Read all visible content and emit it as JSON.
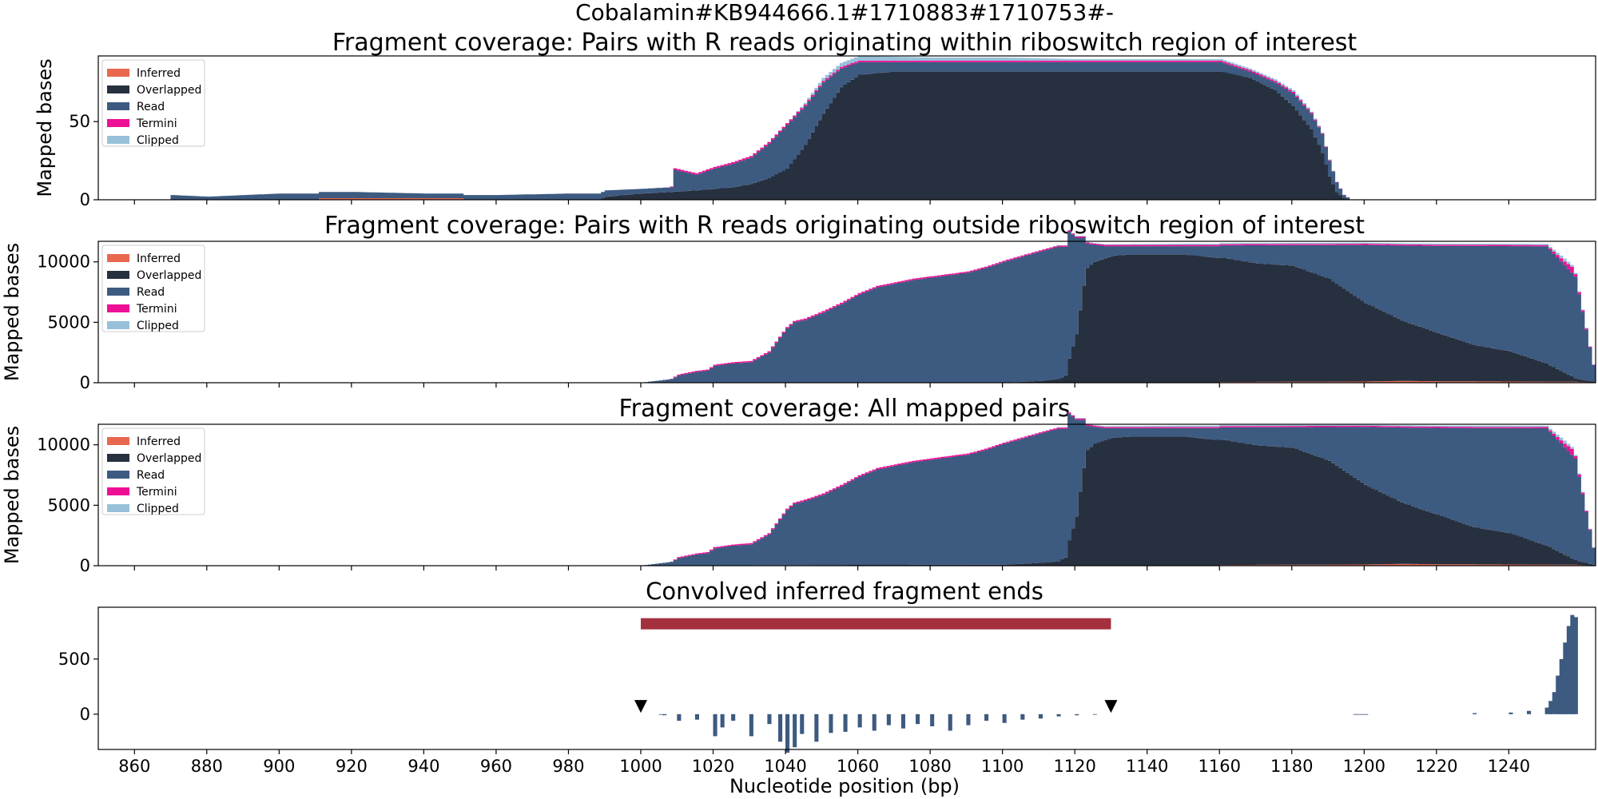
{
  "figure": {
    "suptitle": "Cobalamin#KB944666.1#1710883#1710753#-",
    "xlabel": "Nucleotide position (bp)"
  },
  "colors": {
    "Inferred": "#e8684f",
    "Overlapped": "#27303f",
    "Read": "#3d5a80",
    "Termini": "#ee0f97",
    "Clipped": "#98c1d9",
    "region_bar": "#a4303d"
  },
  "chart_data": [
    {
      "type": "area",
      "title": "Fragment coverage: Pairs with R reads originating within riboswitch region of interest",
      "ylabel": "Mapped bases",
      "xlim": [
        850,
        1264
      ],
      "ylim": [
        0,
        92
      ],
      "yticks": [
        0,
        50
      ],
      "legend": {
        "placement": "top-left",
        "entries": [
          "Inferred",
          "Overlapped",
          "Read",
          "Termini",
          "Clipped"
        ]
      },
      "series": [
        {
          "name": "Inferred",
          "x": [
            870,
            910,
            911,
            950,
            951,
            1264
          ],
          "values": [
            0,
            0,
            1,
            1,
            0,
            0
          ]
        },
        {
          "name": "Overlapped",
          "x": [
            870,
            988,
            990,
            1000,
            1008,
            1015,
            1025,
            1030,
            1035,
            1040,
            1045,
            1050,
            1055,
            1060,
            1070,
            1080,
            1090,
            1100,
            1110,
            1120,
            1130,
            1140,
            1160,
            1168,
            1175,
            1180,
            1185,
            1188,
            1190,
            1192,
            1194,
            1196,
            1264
          ],
          "values": [
            0,
            0,
            2,
            4,
            5,
            6,
            8,
            10,
            14,
            20,
            35,
            55,
            72,
            80,
            82,
            82,
            82,
            82,
            82,
            82,
            82,
            82,
            82,
            78,
            70,
            60,
            45,
            30,
            15,
            5,
            1,
            0,
            0
          ]
        },
        {
          "name": "Read",
          "x": [
            870,
            880,
            890,
            900,
            920,
            940,
            960,
            980,
            990,
            1000,
            1008,
            1009,
            1015,
            1020,
            1025,
            1030,
            1035,
            1040,
            1045,
            1050,
            1055,
            1060,
            1070,
            1080,
            1090,
            1100,
            1110,
            1120,
            1130,
            1140,
            1150,
            1160,
            1168,
            1175,
            1180,
            1185,
            1188,
            1190,
            1192,
            1194,
            1196,
            1264
          ],
          "values": [
            3,
            2,
            3,
            4,
            4,
            3,
            3,
            4,
            4,
            3,
            3,
            14,
            10,
            13,
            15,
            17,
            22,
            28,
            25,
            20,
            12,
            8,
            6,
            6,
            6,
            6,
            6,
            6,
            6,
            6,
            6,
            6,
            4,
            5,
            8,
            10,
            12,
            10,
            6,
            2,
            0,
            0
          ]
        },
        {
          "name": "Termini",
          "x": [
            870,
            1007,
            1009,
            1040,
            1060,
            1120,
            1180,
            1196,
            1264
          ],
          "values": [
            0,
            0,
            1,
            1,
            1,
            1,
            1,
            0,
            0
          ]
        },
        {
          "name": "Clipped",
          "x": [
            870,
            1040,
            1050,
            1060,
            1080,
            1100,
            1120,
            1180,
            1196,
            1264
          ],
          "values": [
            0,
            0,
            2,
            3,
            2,
            2,
            1,
            1,
            0,
            0
          ]
        }
      ]
    },
    {
      "type": "area",
      "title": "Fragment coverage: Pairs with R reads originating outside riboswitch region of interest",
      "ylabel": "Mapped bases",
      "xlim": [
        850,
        1264
      ],
      "ylim": [
        0,
        11700
      ],
      "yticks": [
        0,
        5000,
        10000
      ],
      "legend": {
        "placement": "top-left",
        "entries": [
          "Inferred",
          "Overlapped",
          "Read",
          "Termini",
          "Clipped"
        ]
      },
      "series": [
        {
          "name": "Inferred",
          "x": [
            870,
            1159,
            1160,
            1200,
            1210,
            1220,
            1240,
            1258,
            1264
          ],
          "values": [
            0,
            0,
            60,
            100,
            150,
            120,
            100,
            80,
            0
          ]
        },
        {
          "name": "Overlapped",
          "x": [
            870,
            1000,
            1050,
            1100,
            1110,
            1115,
            1117,
            1118,
            1120,
            1121,
            1122,
            1123,
            1125,
            1128,
            1130,
            1135,
            1150,
            1160,
            1170,
            1180,
            1190,
            1200,
            1210,
            1220,
            1230,
            1240,
            1250,
            1258,
            1264
          ],
          "values": [
            0,
            0,
            0,
            0,
            150,
            300,
            600,
            2000,
            4000,
            6000,
            8000,
            9500,
            10000,
            10300,
            10500,
            10600,
            10600,
            10300,
            9800,
            9600,
            8500,
            6500,
            5000,
            4000,
            3000,
            2500,
            1500,
            300,
            0
          ]
        },
        {
          "name": "Read",
          "x": [
            870,
            990,
            1000,
            1008,
            1010,
            1015,
            1018,
            1020,
            1025,
            1030,
            1035,
            1040,
            1042,
            1045,
            1050,
            1055,
            1060,
            1065,
            1070,
            1075,
            1080,
            1085,
            1090,
            1095,
            1100,
            1110,
            1115,
            1118,
            1120,
            1121,
            1122,
            1123,
            1125,
            1128,
            1130,
            1135,
            1150,
            1160,
            1170,
            1180,
            1190,
            1200,
            1210,
            1220,
            1230,
            1240,
            1250,
            1258,
            1264
          ],
          "values": [
            0,
            0,
            20,
            300,
            600,
            900,
            1000,
            1400,
            1600,
            1700,
            2500,
            4500,
            5000,
            5200,
            5800,
            6500,
            7300,
            7900,
            8200,
            8500,
            8700,
            8900,
            9100,
            9500,
            10000,
            10700,
            10950,
            10500,
            8000,
            6000,
            4000,
            2000,
            1400,
            1000,
            800,
            700,
            700,
            1000,
            1500,
            1700,
            2800,
            4800,
            6200,
            7200,
            8200,
            8700,
            9700,
            8400,
            0
          ]
        },
        {
          "name": "Termini",
          "x": [
            870,
            1007,
            1010,
            1050,
            1100,
            1200,
            1250,
            1255,
            1257,
            1258,
            1264
          ],
          "values": [
            0,
            0,
            80,
            120,
            100,
            100,
            100,
            300,
            500,
            200,
            0
          ]
        },
        {
          "name": "Clipped",
          "x": [
            870,
            1100,
            1150,
            1200,
            1250,
            1255,
            1258,
            1264
          ],
          "values": [
            0,
            0,
            100,
            80,
            100,
            250,
            100,
            0
          ]
        }
      ]
    },
    {
      "type": "area",
      "title": "Fragment coverage: All mapped pairs",
      "ylabel": "Mapped bases",
      "xlim": [
        850,
        1264
      ],
      "ylim": [
        0,
        11700
      ],
      "yticks": [
        0,
        5000,
        10000
      ],
      "legend": {
        "placement": "top-left",
        "entries": [
          "Inferred",
          "Overlapped",
          "Read",
          "Termini",
          "Clipped"
        ]
      },
      "series": [
        {
          "name": "Inferred",
          "x": [
            870,
            1159,
            1160,
            1200,
            1210,
            1220,
            1240,
            1258,
            1264
          ],
          "values": [
            0,
            0,
            60,
            100,
            150,
            120,
            100,
            80,
            0
          ]
        },
        {
          "name": "Overlapped",
          "x": [
            870,
            1000,
            1050,
            1100,
            1110,
            1115,
            1117,
            1118,
            1120,
            1121,
            1122,
            1123,
            1125,
            1128,
            1130,
            1135,
            1150,
            1160,
            1170,
            1180,
            1190,
            1200,
            1210,
            1220,
            1230,
            1240,
            1250,
            1258,
            1264
          ],
          "values": [
            0,
            0,
            60,
            80,
            230,
            380,
            680,
            2080,
            4080,
            6080,
            8080,
            9580,
            10080,
            10380,
            10580,
            10680,
            10680,
            10380,
            9880,
            9680,
            8580,
            6580,
            5080,
            4080,
            3080,
            2580,
            1580,
            380,
            0
          ]
        },
        {
          "name": "Read",
          "x": [
            870,
            990,
            1000,
            1008,
            1010,
            1015,
            1018,
            1020,
            1025,
            1030,
            1035,
            1040,
            1042,
            1045,
            1050,
            1055,
            1060,
            1065,
            1070,
            1075,
            1080,
            1085,
            1090,
            1095,
            1100,
            1110,
            1115,
            1118,
            1120,
            1121,
            1122,
            1123,
            1125,
            1128,
            1130,
            1135,
            1150,
            1160,
            1170,
            1180,
            1190,
            1200,
            1210,
            1220,
            1230,
            1240,
            1250,
            1258,
            1264
          ],
          "values": [
            3,
            4,
            23,
            303,
            614,
            913,
            1015,
            1417,
            1622,
            1728,
            2548,
            4560,
            5060,
            5300,
            5800,
            6500,
            7300,
            7900,
            8200,
            8500,
            8700,
            8900,
            9100,
            9500,
            10000,
            10700,
            10950,
            10500,
            8000,
            6000,
            4000,
            2000,
            1400,
            1000,
            800,
            700,
            700,
            1000,
            1500,
            1700,
            2800,
            4800,
            6200,
            7200,
            8200,
            8700,
            9700,
            8400,
            0
          ]
        },
        {
          "name": "Termini",
          "x": [
            870,
            1007,
            1010,
            1050,
            1100,
            1200,
            1250,
            1255,
            1257,
            1258,
            1264
          ],
          "values": [
            0,
            0,
            81,
            121,
            101,
            101,
            101,
            300,
            500,
            200,
            0
          ]
        },
        {
          "name": "Clipped",
          "x": [
            870,
            1100,
            1150,
            1200,
            1250,
            1255,
            1258,
            1264
          ],
          "values": [
            0,
            0,
            101,
            81,
            101,
            250,
            100,
            0
          ]
        }
      ]
    },
    {
      "type": "bar",
      "title": "Convolved inferred fragment ends",
      "ylabel": "",
      "xlabel": "Nucleotide position (bp)",
      "xlim": [
        850,
        1264
      ],
      "ylim": [
        -320,
        970
      ],
      "yticks": [
        0,
        500
      ],
      "xticks": [
        860,
        880,
        900,
        920,
        940,
        960,
        980,
        1000,
        1020,
        1040,
        1060,
        1080,
        1100,
        1120,
        1140,
        1160,
        1180,
        1200,
        1220,
        1240
      ],
      "region": {
        "start": 1000,
        "end": 1130,
        "y": 820
      },
      "markers": [
        {
          "x": 1000,
          "y": 70
        },
        {
          "x": 1130,
          "y": 70
        }
      ],
      "x": [
        1005,
        1006,
        1010,
        1015,
        1020,
        1022,
        1025,
        1030,
        1035,
        1038,
        1040,
        1042,
        1044,
        1048,
        1052,
        1056,
        1060,
        1064,
        1068,
        1072,
        1076,
        1080,
        1085,
        1090,
        1095,
        1100,
        1105,
        1110,
        1115,
        1120,
        1125,
        1197,
        1198,
        1199,
        1200,
        1230,
        1240,
        1245,
        1250,
        1251,
        1252,
        1253,
        1254,
        1255,
        1256,
        1257,
        1258
      ],
      "values": [
        0,
        -10,
        -60,
        -50,
        -200,
        -120,
        -60,
        -200,
        -90,
        -250,
        -350,
        -300,
        -180,
        -250,
        -170,
        -160,
        -120,
        -150,
        -100,
        -130,
        -90,
        -110,
        -150,
        -100,
        -60,
        -80,
        -50,
        -40,
        -20,
        -10,
        -5,
        -5,
        -5,
        -5,
        0,
        10,
        15,
        30,
        60,
        120,
        200,
        350,
        500,
        650,
        800,
        900,
        880
      ]
    }
  ]
}
